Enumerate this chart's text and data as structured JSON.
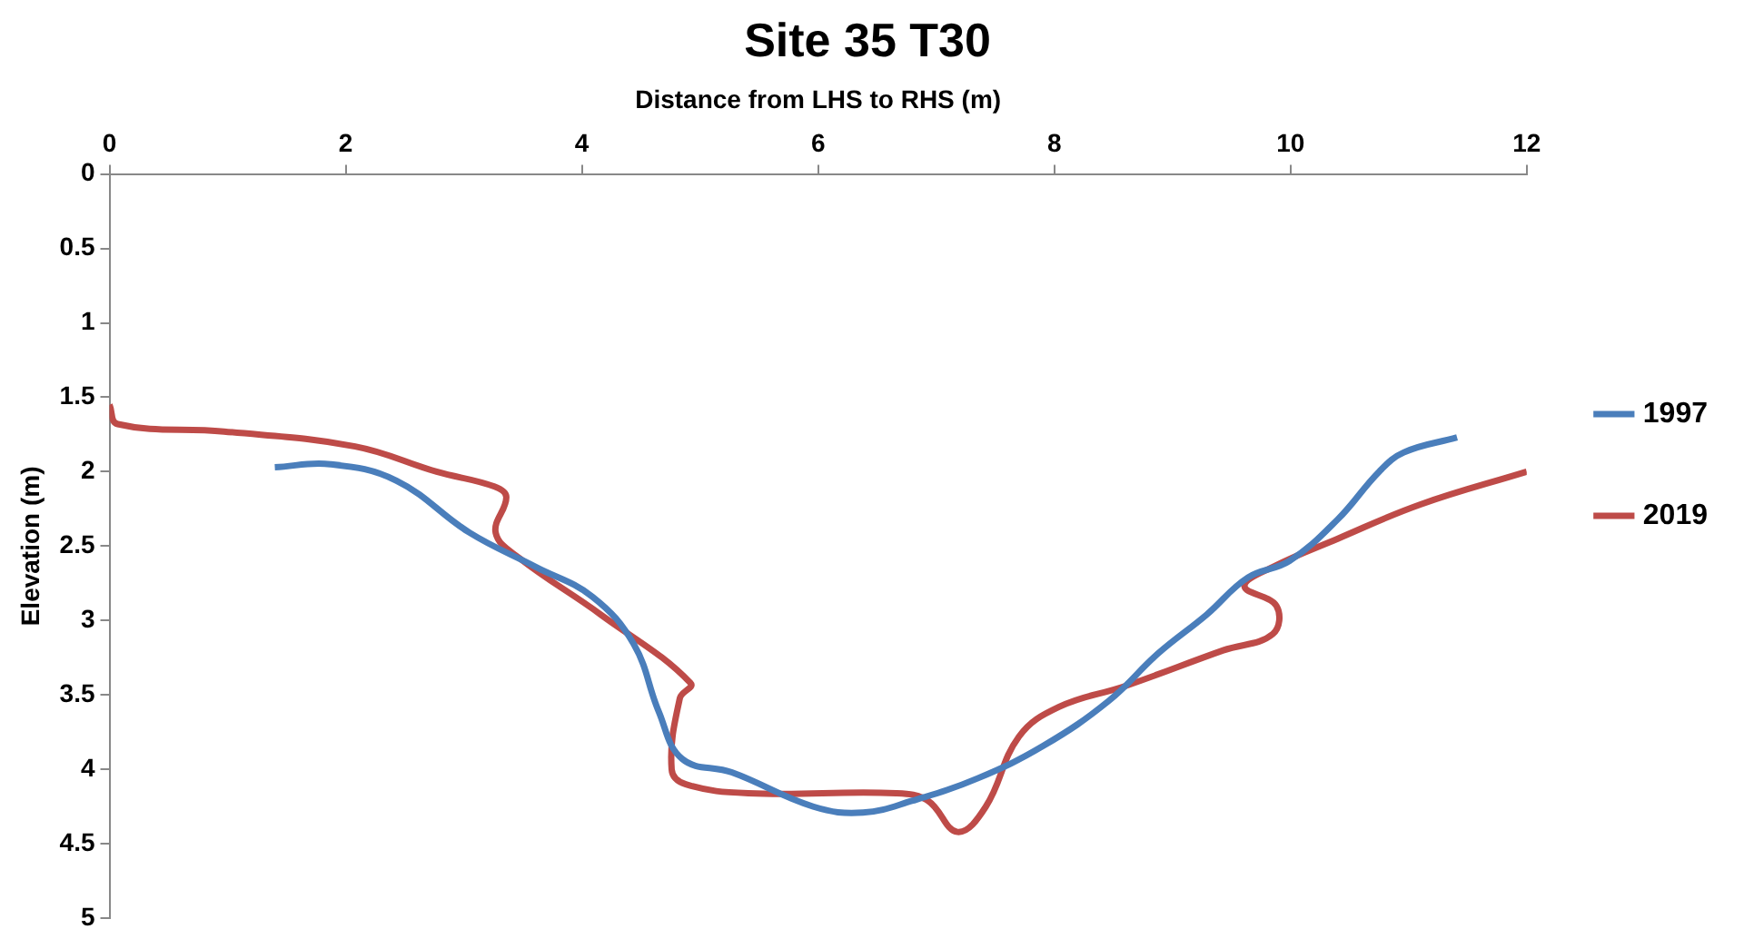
{
  "chart_data": {
    "type": "line",
    "title": "Site 35 T30",
    "xlabel": "Distance from LHS to RHS (m)",
    "ylabel": "Elevation (m)",
    "xlim": [
      0,
      12
    ],
    "xticks": [
      0,
      2,
      4,
      6,
      8,
      10,
      12
    ],
    "ylim": [
      5,
      0
    ],
    "yticks": [
      0,
      0.5,
      1,
      1.5,
      2,
      2.5,
      3,
      3.5,
      4,
      4.5,
      5
    ],
    "grid": false,
    "legend": "right",
    "marker": "none",
    "line_style": "solid",
    "series": [
      {
        "name": "1997",
        "color": "#4a7ebb",
        "x": [
          1.4,
          1.87,
          2.43,
          3.05,
          3.61,
          4.09,
          4.44,
          4.65,
          4.85,
          5.27,
          5.96,
          6.38,
          6.8,
          7.35,
          7.91,
          8.46,
          8.88,
          9.29,
          9.64,
          9.99,
          10.4,
          10.75,
          10.96,
          11.41
        ],
        "values": [
          1.97,
          1.95,
          2.06,
          2.41,
          2.64,
          2.84,
          3.16,
          3.61,
          3.93,
          4.02,
          4.25,
          4.29,
          4.21,
          4.06,
          3.84,
          3.54,
          3.22,
          2.96,
          2.71,
          2.6,
          2.32,
          2.0,
          1.87,
          1.77
        ]
      },
      {
        "name": "2019",
        "color": "#be4b48",
        "x": [
          0,
          0.07,
          0.97,
          2.08,
          2.77,
          3.26,
          3.36,
          3.27,
          3.47,
          4.16,
          4.92,
          4.83,
          4.76,
          4.88,
          5.41,
          6.66,
          6.93,
          7.18,
          7.42,
          7.7,
          8.04,
          8.6,
          9.43,
          9.85,
          9.88,
          9.61,
          9.85,
          10.4,
          11.1,
          12
        ],
        "values": [
          1.55,
          1.68,
          1.73,
          1.83,
          2.0,
          2.1,
          2.17,
          2.41,
          2.58,
          2.96,
          3.42,
          3.52,
          4.0,
          4.1,
          4.16,
          4.16,
          4.21,
          4.42,
          4.25,
          3.78,
          3.58,
          3.44,
          3.2,
          3.09,
          2.9,
          2.77,
          2.64,
          2.45,
          2.22,
          2.0
        ]
      }
    ]
  }
}
